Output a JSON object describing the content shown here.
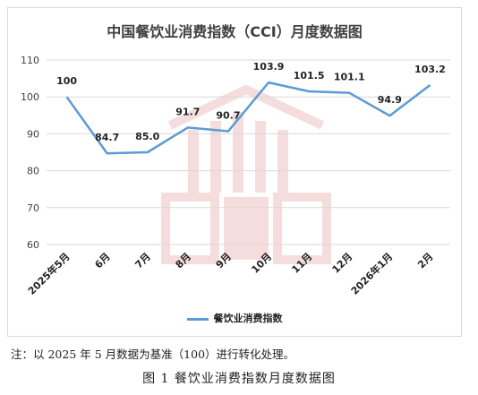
{
  "chart_data": {
    "type": "line",
    "title": "中国餐饮业消费指数（CCI）月度数据图",
    "categories": [
      "2025年5月",
      "6月",
      "7月",
      "8月",
      "9月",
      "10月",
      "11月",
      "12月",
      "2026年1月",
      "2月"
    ],
    "series": [
      {
        "name": "餐饮业消费指数",
        "values": [
          100,
          84.7,
          85.0,
          91.7,
          90.7,
          103.9,
          101.5,
          101.1,
          94.9,
          103.2
        ]
      }
    ],
    "data_labels": [
      "100",
      "84.7",
      "85.0",
      "91.7",
      "90.7",
      "103.9",
      "101.5",
      "101.1",
      "94.9",
      "103.2"
    ],
    "ylim": [
      60,
      110
    ],
    "yticks": [
      60,
      70,
      80,
      90,
      100,
      110
    ],
    "grid": true,
    "legend_position": "bottom",
    "line_color": "#5b9bd5"
  },
  "watermark_text": "中国餐饮业消费指数（CCI）",
  "note": "注：以 2025 年 5 月数据为基准（100）进行转化处理。",
  "caption": "图 1  餐饮业消费指数月度数据图"
}
